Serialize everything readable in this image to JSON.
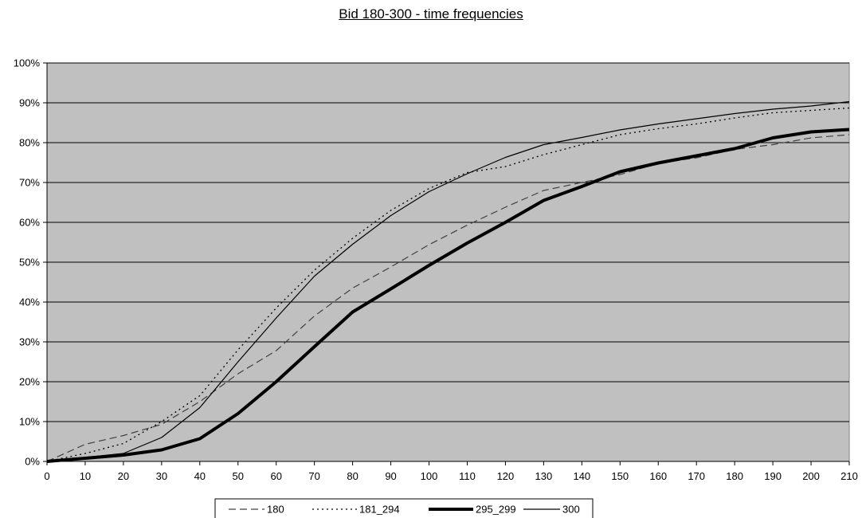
{
  "chart_data": {
    "type": "line",
    "title": "Bid 180-300 -  time frequencies",
    "xlabel": "",
    "ylabel": "",
    "xlim": [
      0,
      210
    ],
    "ylim": [
      0,
      1
    ],
    "grid": "horizontal",
    "legend_position": "bottom",
    "plot_background": "#c0c0c0",
    "x": [
      0,
      10,
      20,
      30,
      40,
      50,
      60,
      70,
      80,
      90,
      100,
      110,
      120,
      130,
      140,
      150,
      160,
      170,
      180,
      190,
      200,
      210
    ],
    "x_ticks": [
      "0",
      "10",
      "20",
      "30",
      "40",
      "50",
      "60",
      "70",
      "80",
      "90",
      "100",
      "110",
      "120",
      "130",
      "140",
      "150",
      "160",
      "170",
      "180",
      "190",
      "200",
      "210"
    ],
    "y_ticks": [
      "0%",
      "10%",
      "20%",
      "30%",
      "40%",
      "50%",
      "60%",
      "70%",
      "80%",
      "90%",
      "100%"
    ],
    "series": [
      {
        "name": "180",
        "style": "dashed",
        "values": [
          0.0,
          0.043,
          0.065,
          0.093,
          0.15,
          0.22,
          0.278,
          0.365,
          0.435,
          0.488,
          0.544,
          0.593,
          0.638,
          0.68,
          0.7,
          0.72,
          0.748,
          0.762,
          0.783,
          0.795,
          0.812,
          0.82
        ]
      },
      {
        "name": "181_294",
        "style": "dotted",
        "values": [
          0.0,
          0.02,
          0.045,
          0.1,
          0.165,
          0.28,
          0.385,
          0.48,
          0.56,
          0.63,
          0.685,
          0.725,
          0.74,
          0.77,
          0.795,
          0.82,
          0.835,
          0.847,
          0.862,
          0.875,
          0.881,
          0.887
        ]
      },
      {
        "name": "295_299",
        "style": "bold",
        "values": [
          0.0,
          0.008,
          0.016,
          0.029,
          0.057,
          0.12,
          0.2,
          0.288,
          0.375,
          0.433,
          0.492,
          0.548,
          0.6,
          0.655,
          0.69,
          0.727,
          0.749,
          0.767,
          0.785,
          0.812,
          0.827,
          0.833
        ]
      },
      {
        "name": "300",
        "style": "thin",
        "values": [
          0.0,
          0.01,
          0.02,
          0.06,
          0.135,
          0.25,
          0.36,
          0.465,
          0.545,
          0.617,
          0.677,
          0.722,
          0.763,
          0.795,
          0.813,
          0.832,
          0.847,
          0.86,
          0.873,
          0.884,
          0.892,
          0.903
        ]
      }
    ]
  }
}
